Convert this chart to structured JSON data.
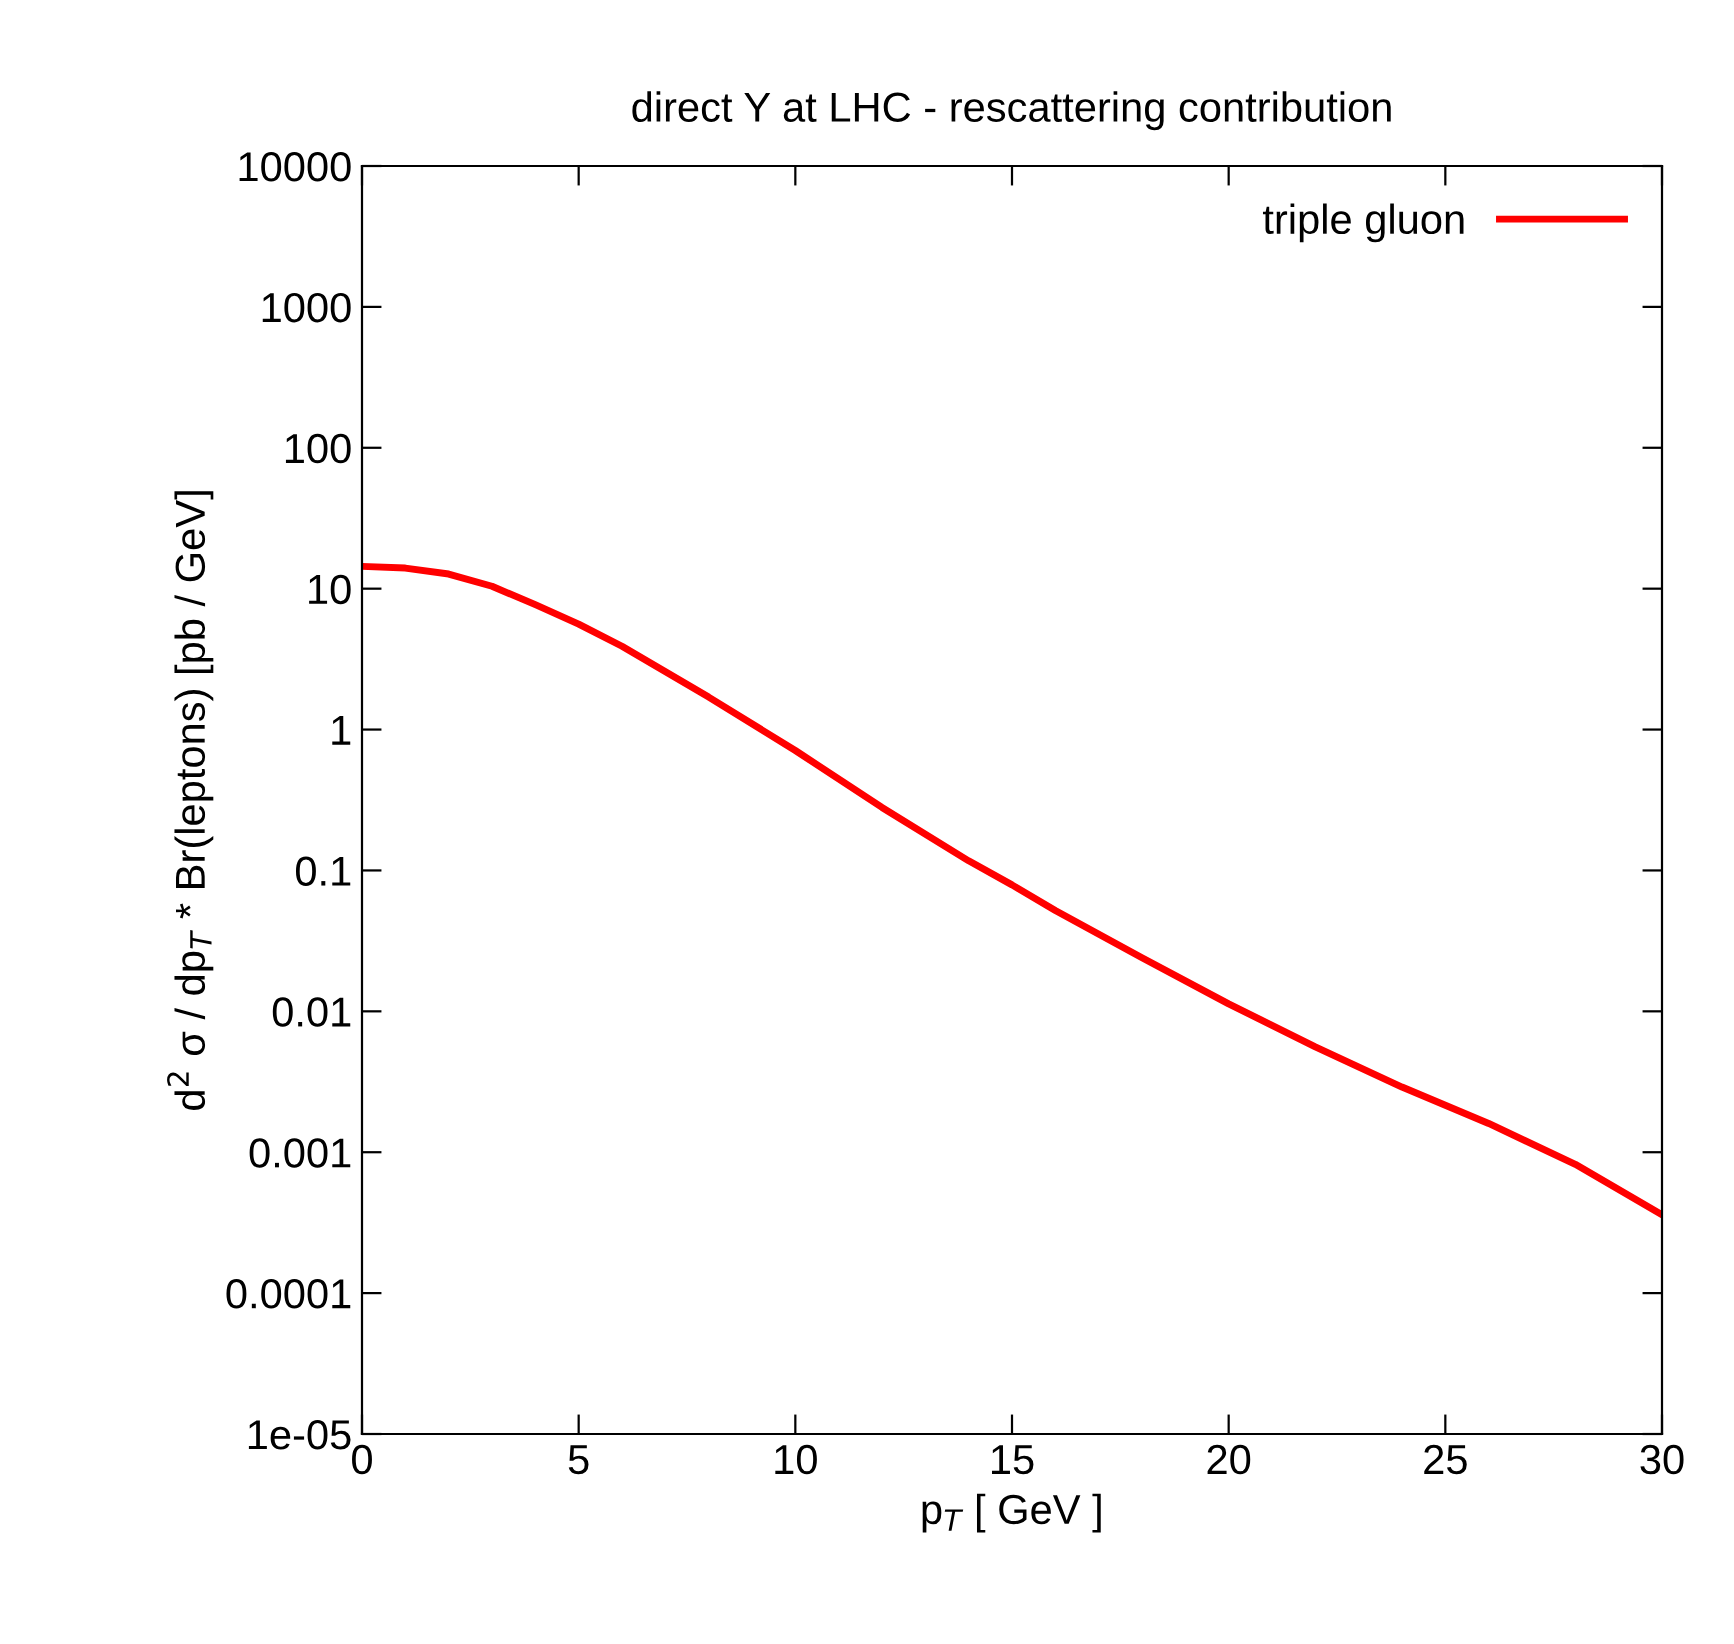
{
  "chart_data": {
    "type": "line",
    "title": "direct Υ at LHC - rescattering contribution",
    "xlabel": "p$_{T}$ [ GeV ]",
    "ylabel": "d$^{2}$ σ / dp$_{T}$ * Br(leptons) [pb / GeV]",
    "log": "y",
    "xlim": [
      0,
      30
    ],
    "ylim": [
      1e-05,
      10000
    ],
    "xticks": [
      0,
      5,
      10,
      15,
      20,
      25,
      30
    ],
    "yticks": [
      {
        "value": 1e-05,
        "label": "1e-05"
      },
      0.0001,
      0.001,
      0.01,
      0.1,
      1,
      10,
      100,
      1000,
      10000
    ],
    "grid": false,
    "legend": "top right",
    "marker": "none",
    "line_style": "solid",
    "series": [
      {
        "name": "triple gluon",
        "color": "#ff0000",
        "x": [
          0,
          1,
          2,
          3,
          4,
          5,
          6,
          8,
          10,
          12,
          14,
          15,
          16,
          18,
          20,
          22,
          24,
          26,
          28,
          30
        ],
        "values": [
          14.4,
          14,
          12.7,
          10.4,
          7.7,
          5.6,
          3.9,
          1.7,
          0.71,
          0.28,
          0.117,
          0.079,
          0.052,
          0.024,
          0.0113,
          0.0056,
          0.0029,
          0.0016,
          0.00082,
          0.00036
        ]
      }
    ]
  }
}
